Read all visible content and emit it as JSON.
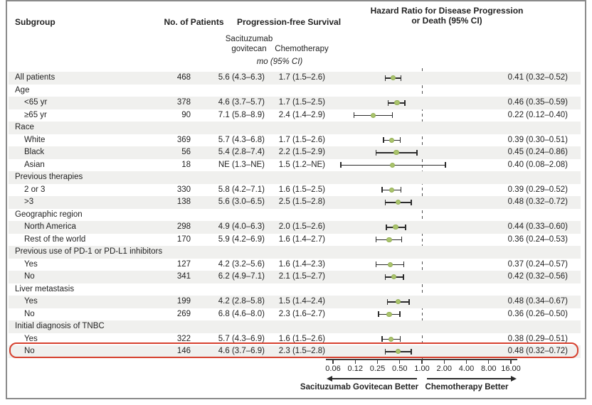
{
  "figure": {
    "col_headers": {
      "subgroup": "Subgroup",
      "patients": "No. of Patients",
      "pfs": "Progression-free Survival",
      "saci_line1": "Sacituzumab",
      "saci_line2": "govitecan",
      "chemo": "Chemotherapy",
      "units": "mo (95% CI)",
      "hr_line1": "Hazard Ratio for Disease Progression",
      "hr_line2": "or Death (95% CI)"
    },
    "colors": {
      "stripe": "#f0f0ee",
      "marker_green": "#aac46c",
      "highlight_red": "#d6402e",
      "frame_gray": "#8a8a8a"
    }
  },
  "chart_data": {
    "type": "scatter",
    "variant": "forest-plot",
    "title": "Hazard Ratio for Disease Progression or Death (95% CI)",
    "x_scale": "log2",
    "x_ticks": [
      "0.06",
      "0.12",
      "0.25",
      "0.50",
      "1.00",
      "2.00",
      "4.00",
      "8.00",
      "16.00"
    ],
    "x_tick_values": [
      0.0625,
      0.125,
      0.25,
      0.5,
      1,
      2,
      4,
      8,
      16
    ],
    "xlim": [
      0.0625,
      16
    ],
    "reference_line": 1.0,
    "legend_left": "Sacituzumab Govitecan Better",
    "legend_right": "Chemotherapy Better",
    "rows": [
      {
        "label": "All patients",
        "indent": 0,
        "n": "468",
        "saci": "5.6 (4.3–6.3)",
        "chemo": "1.7 (1.5–2.6)",
        "hr": 0.41,
        "lo": 0.32,
        "hi": 0.52,
        "hr_text": "0.41 (0.32–0.52)"
      },
      {
        "label": "Age",
        "indent": 0,
        "header": true
      },
      {
        "label": "<65 yr",
        "indent": 1,
        "n": "378",
        "saci": "4.6 (3.7–5.7)",
        "chemo": "1.7 (1.5–2.5)",
        "hr": 0.46,
        "lo": 0.35,
        "hi": 0.59,
        "hr_text": "0.46 (0.35–0.59)"
      },
      {
        "label": "≥65 yr",
        "indent": 1,
        "n": "90",
        "saci": "7.1 (5.8–8.9)",
        "chemo": "2.4 (1.4–2.9)",
        "hr": 0.22,
        "lo": 0.12,
        "hi": 0.4,
        "hr_text": "0.22 (0.12–0.40)"
      },
      {
        "label": "Race",
        "indent": 0,
        "header": true
      },
      {
        "label": "White",
        "indent": 1,
        "n": "369",
        "saci": "5.7 (4.3–6.8)",
        "chemo": "1.7 (1.5–2.6)",
        "hr": 0.39,
        "lo": 0.3,
        "hi": 0.51,
        "hr_text": "0.39 (0.30–0.51)"
      },
      {
        "label": "Black",
        "indent": 1,
        "n": "56",
        "saci": "5.4 (2.8–7.4)",
        "chemo": "2.2 (1.5–2.9)",
        "hr": 0.45,
        "lo": 0.24,
        "hi": 0.86,
        "hr_text": "0.45 (0.24–0.86)"
      },
      {
        "label": "Asian",
        "indent": 1,
        "n": "18",
        "saci": "NE (1.3–NE)",
        "chemo": "1.5 (1.2–NE)",
        "hr": 0.4,
        "lo": 0.08,
        "hi": 2.08,
        "hr_text": "0.40 (0.08–2.08)"
      },
      {
        "label": "Previous therapies",
        "indent": 0,
        "header": true
      },
      {
        "label": "2 or 3",
        "indent": 1,
        "n": "330",
        "saci": "5.8 (4.2–7.1)",
        "chemo": "1.6 (1.5–2.5)",
        "hr": 0.39,
        "lo": 0.29,
        "hi": 0.52,
        "hr_text": "0.39 (0.29–0.52)"
      },
      {
        "label": ">3",
        "indent": 1,
        "n": "138",
        "saci": "5.6 (3.0–6.5)",
        "chemo": "2.5 (1.5–2.8)",
        "hr": 0.48,
        "lo": 0.32,
        "hi": 0.72,
        "hr_text": "0.48 (0.32–0.72)"
      },
      {
        "label": "Geographic region",
        "indent": 0,
        "header": true
      },
      {
        "label": "North America",
        "indent": 1,
        "n": "298",
        "saci": "4.9 (4.0–6.3)",
        "chemo": "2.0 (1.5–2.6)",
        "hr": 0.44,
        "lo": 0.33,
        "hi": 0.6,
        "hr_text": "0.44 (0.33–0.60)"
      },
      {
        "label": "Rest of the world",
        "indent": 1,
        "n": "170",
        "saci": "5.9 (4.2–6.9)",
        "chemo": "1.6 (1.4–2.7)",
        "hr": 0.36,
        "lo": 0.24,
        "hi": 0.53,
        "hr_text": "0.36 (0.24–0.53)"
      },
      {
        "label": "Previous use of PD-1 or PD-L1 inhibitors",
        "indent": 0,
        "header": true
      },
      {
        "label": "Yes",
        "indent": 1,
        "n": "127",
        "saci": "4.2 (3.2–5.6)",
        "chemo": "1.6 (1.4–2.3)",
        "hr": 0.37,
        "lo": 0.24,
        "hi": 0.57,
        "hr_text": "0.37 (0.24–0.57)"
      },
      {
        "label": "No",
        "indent": 1,
        "n": "341",
        "saci": "6.2 (4.9–7.1)",
        "chemo": "2.1 (1.5–2.7)",
        "hr": 0.42,
        "lo": 0.32,
        "hi": 0.56,
        "hr_text": "0.42 (0.32–0.56)"
      },
      {
        "label": "Liver metastasis",
        "indent": 0,
        "header": true
      },
      {
        "label": "Yes",
        "indent": 1,
        "n": "199",
        "saci": "4.2 (2.8–5.8)",
        "chemo": "1.5 (1.4–2.4)",
        "hr": 0.48,
        "lo": 0.34,
        "hi": 0.67,
        "hr_text": "0.48 (0.34–0.67)"
      },
      {
        "label": "No",
        "indent": 1,
        "n": "269",
        "saci": "6.8 (4.6–8.0)",
        "chemo": "2.3 (1.6–2.7)",
        "hr": 0.36,
        "lo": 0.26,
        "hi": 0.5,
        "hr_text": "0.36 (0.26–0.50)"
      },
      {
        "label": "Initial diagnosis of TNBC",
        "indent": 0,
        "header": true
      },
      {
        "label": "Yes",
        "indent": 1,
        "n": "322",
        "saci": "5.7 (4.3–6.9)",
        "chemo": "1.6 (1.5–2.6)",
        "hr": 0.38,
        "lo": 0.29,
        "hi": 0.51,
        "hr_text": "0.38 (0.29–0.51)"
      },
      {
        "label": "No",
        "indent": 1,
        "n": "146",
        "saci": "4.6 (3.7–6.9)",
        "chemo": "2.3 (1.5–2.8)",
        "hr": 0.48,
        "lo": 0.32,
        "hi": 0.72,
        "hr_text": "0.48 (0.32–0.72)",
        "highlighted": true
      }
    ]
  }
}
